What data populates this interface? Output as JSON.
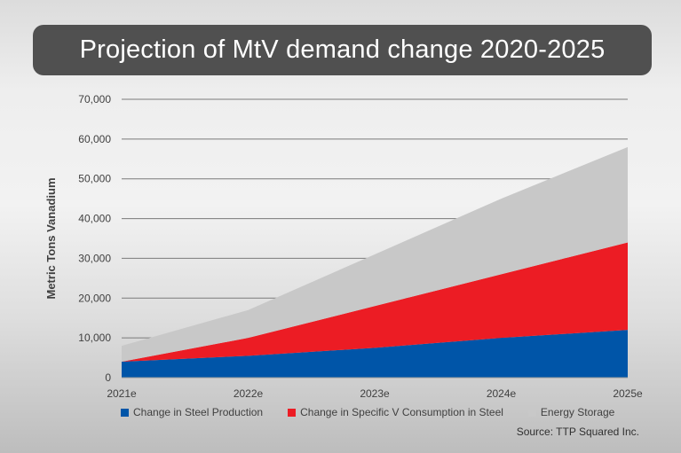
{
  "chart_data": {
    "type": "area",
    "stacked": true,
    "title": "Projection of MtV demand change 2020-2025",
    "ylabel": "Metric Tons Vanadium",
    "xlabel": "",
    "categories": [
      "2021e",
      "2022e",
      "2023e",
      "2024e",
      "2025e"
    ],
    "ylim": [
      0,
      70000
    ],
    "yticks": [
      "0",
      "10,000",
      "20,000",
      "30,000",
      "40,000",
      "50,000",
      "60,000",
      "70,000"
    ],
    "grid": true,
    "legend_position": "bottom",
    "series": [
      {
        "name": "Change in Steel Production",
        "color": "#0055a8",
        "values": [
          4000,
          5500,
          7500,
          10000,
          12000
        ]
      },
      {
        "name": "Change in Specific V Consumption in Steel",
        "color": "#ec1c24",
        "values": [
          0,
          4500,
          10500,
          16000,
          22000
        ]
      },
      {
        "name": "Energy Storage",
        "color": "#c8c8c8",
        "values": [
          4000,
          7000,
          13000,
          19000,
          24000
        ]
      }
    ],
    "source": "Source:  TTP Squared Inc."
  }
}
